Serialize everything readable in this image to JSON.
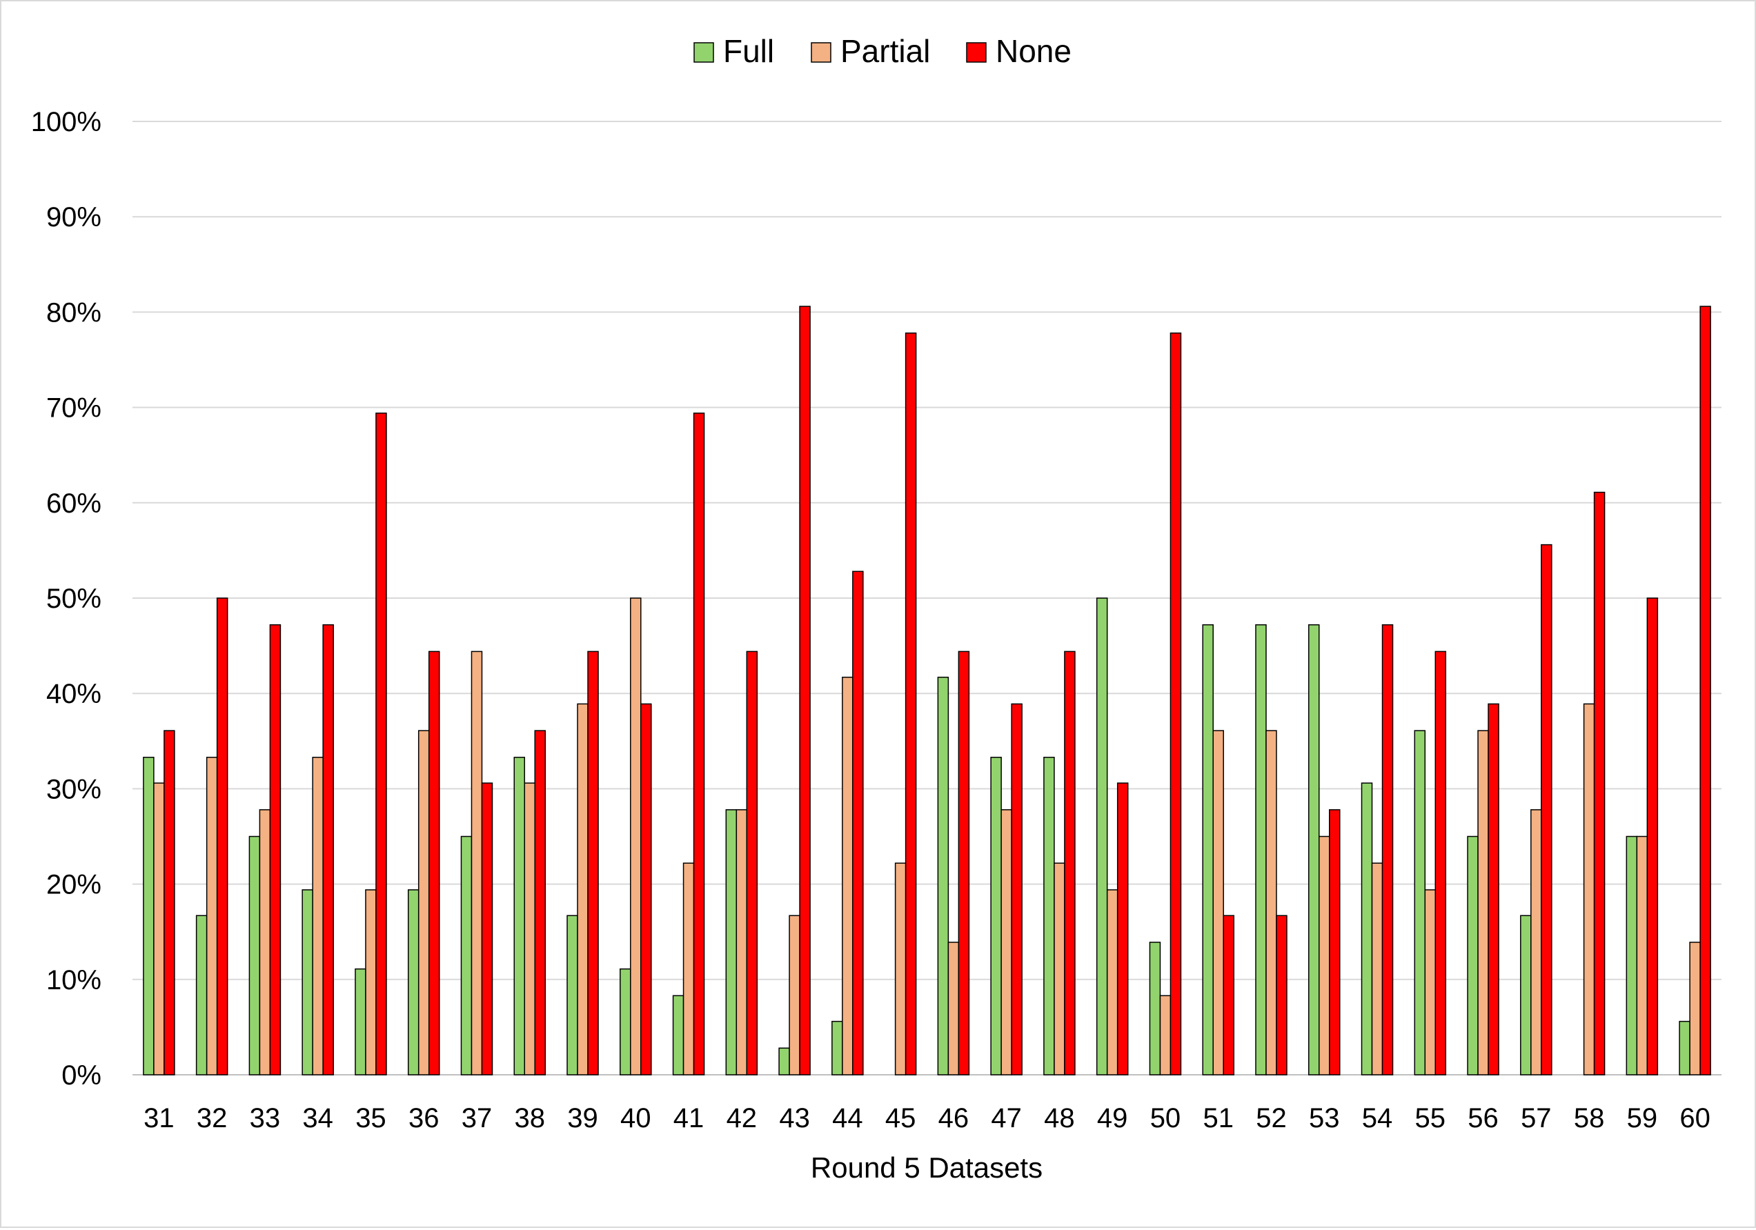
{
  "chart_data": {
    "type": "bar",
    "title": "",
    "xlabel": "Round 5 Datasets",
    "ylabel": "",
    "ylim": [
      0,
      1
    ],
    "yticks": [
      "0%",
      "10%",
      "20%",
      "30%",
      "40%",
      "50%",
      "60%",
      "70%",
      "80%",
      "90%",
      "100%"
    ],
    "grid": true,
    "legend_position": "top",
    "categories": [
      "31",
      "32",
      "33",
      "34",
      "35",
      "36",
      "37",
      "38",
      "39",
      "40",
      "41",
      "42",
      "43",
      "44",
      "45",
      "46",
      "47",
      "48",
      "49",
      "50",
      "51",
      "52",
      "53",
      "54",
      "55",
      "56",
      "57",
      "58",
      "59",
      "60"
    ],
    "series": [
      {
        "name": "Full",
        "color": "#92d36e",
        "values": [
          0.333,
          0.167,
          0.25,
          0.194,
          0.111,
          0.194,
          0.25,
          0.333,
          0.167,
          0.111,
          0.083,
          0.278,
          0.028,
          0.056,
          0.0,
          0.417,
          0.333,
          0.333,
          0.5,
          0.139,
          0.472,
          0.472,
          0.472,
          0.306,
          0.361,
          0.25,
          0.167,
          0.0,
          0.25,
          0.056
        ]
      },
      {
        "name": "Partial",
        "color": "#f4b183",
        "values": [
          0.306,
          0.333,
          0.278,
          0.333,
          0.194,
          0.361,
          0.444,
          0.306,
          0.389,
          0.5,
          0.222,
          0.278,
          0.167,
          0.417,
          0.222,
          0.139,
          0.278,
          0.222,
          0.194,
          0.083,
          0.361,
          0.361,
          0.25,
          0.222,
          0.194,
          0.361,
          0.278,
          0.389,
          0.25,
          0.139
        ]
      },
      {
        "name": "None",
        "color": "#ff0000",
        "values": [
          0.361,
          0.5,
          0.472,
          0.472,
          0.694,
          0.444,
          0.306,
          0.361,
          0.444,
          0.389,
          0.694,
          0.444,
          0.806,
          0.528,
          0.778,
          0.444,
          0.389,
          0.444,
          0.306,
          0.778,
          0.167,
          0.167,
          0.278,
          0.472,
          0.444,
          0.389,
          0.556,
          0.611,
          0.5,
          0.806
        ]
      }
    ]
  }
}
